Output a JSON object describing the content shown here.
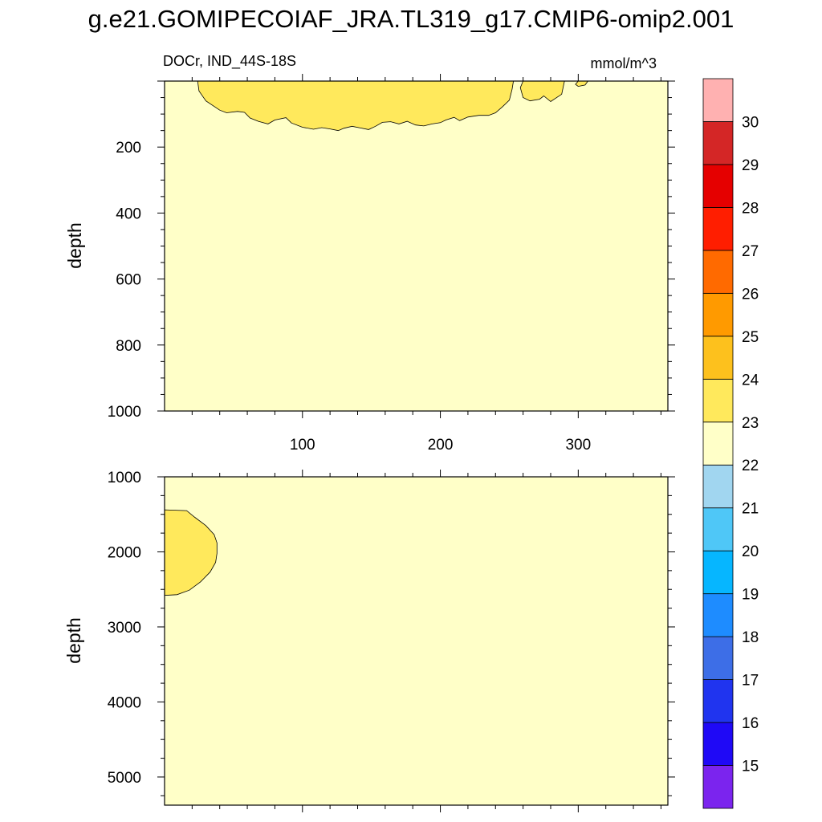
{
  "title": "g.e21.GOMIPECOIAF_JRA.TL319_g17.CMIP6-omip2.001",
  "subtitle_left": "DOCr, IND_44S-18S",
  "subtitle_right": "mmol/m^3",
  "colors": {
    "background_fill": "#ffffc8",
    "contour_23_24": "#ffe95c",
    "outline": "#000000"
  },
  "chart_data": [
    {
      "type": "heatmap",
      "panel": "upper",
      "xlabel": "",
      "ylabel": "depth",
      "xlim": [
        0,
        365
      ],
      "ylim": [
        1000,
        0
      ],
      "x_ticks": [
        100,
        200,
        300
      ],
      "x_tick_labels": [
        "100",
        "200",
        "300"
      ],
      "y_ticks": [
        200,
        400,
        600,
        800,
        1000
      ],
      "y_tick_labels": [
        "200",
        "400",
        "600",
        "800",
        "1000"
      ],
      "background_range": "22-23",
      "regions": [
        {
          "range": "23-24",
          "outline": [
            [
              24,
              0
            ],
            [
              25,
              30
            ],
            [
              30,
              60
            ],
            [
              40,
              88
            ],
            [
              45,
              96
            ],
            [
              53,
              92
            ],
            [
              58,
              95
            ],
            [
              62,
              112
            ],
            [
              68,
              122
            ],
            [
              75,
              130
            ],
            [
              80,
              118
            ],
            [
              88,
              111
            ],
            [
              92,
              127
            ],
            [
              100,
              140
            ],
            [
              108,
              146
            ],
            [
              114,
              141
            ],
            [
              120,
              145
            ],
            [
              126,
              150
            ],
            [
              130,
              143
            ],
            [
              136,
              137
            ],
            [
              142,
              142
            ],
            [
              148,
              147
            ],
            [
              153,
              137
            ],
            [
              158,
              125
            ],
            [
              164,
              123
            ],
            [
              170,
              130
            ],
            [
              176,
              122
            ],
            [
              182,
              133
            ],
            [
              188,
              136
            ],
            [
              194,
              130
            ],
            [
              200,
              126
            ],
            [
              204,
              118
            ],
            [
              210,
              110
            ],
            [
              214,
              120
            ],
            [
              220,
              109
            ],
            [
              228,
              104
            ],
            [
              235,
              104
            ],
            [
              240,
              96
            ],
            [
              245,
              78
            ],
            [
              250,
              58
            ],
            [
              252,
              25
            ],
            [
              253,
              0
            ]
          ]
        },
        {
          "range": "23-24",
          "outline": [
            [
              260,
              0
            ],
            [
              258,
              20
            ],
            [
              260,
              50
            ],
            [
              265,
              60
            ],
            [
              272,
              55
            ],
            [
              275,
              45
            ],
            [
              280,
              62
            ],
            [
              288,
              40
            ],
            [
              290,
              0
            ]
          ]
        },
        {
          "range": "23-24",
          "outline": [
            [
              300,
              0
            ],
            [
              298,
              10
            ],
            [
              300,
              16
            ],
            [
              305,
              12
            ],
            [
              307,
              0
            ]
          ]
        }
      ]
    },
    {
      "type": "heatmap",
      "panel": "lower",
      "xlabel": "",
      "ylabel": "depth",
      "xlim": [
        0,
        365
      ],
      "ylim": [
        5375,
        1000
      ],
      "x_ticks": [
        100,
        200,
        300
      ],
      "y_ticks": [
        1000,
        2000,
        3000,
        4000,
        5000
      ],
      "y_tick_labels": [
        "1000",
        "2000",
        "3000",
        "4000",
        "5000"
      ],
      "background_range": "22-23",
      "regions": [
        {
          "range": "23-24",
          "outline": [
            [
              0,
              1440
            ],
            [
              16,
              1450
            ],
            [
              22,
              1540
            ],
            [
              30,
              1650
            ],
            [
              36,
              1770
            ],
            [
              38,
              1880
            ],
            [
              38,
              2020
            ],
            [
              37,
              2140
            ],
            [
              33,
              2270
            ],
            [
              26,
              2400
            ],
            [
              18,
              2510
            ],
            [
              9,
              2570
            ],
            [
              0,
              2580
            ]
          ]
        }
      ]
    }
  ],
  "colorbar": {
    "labels": [
      "15",
      "16",
      "17",
      "18",
      "19",
      "20",
      "21",
      "22",
      "23",
      "24",
      "25",
      "26",
      "27",
      "28",
      "29",
      "30"
    ],
    "colors": [
      "#7b24ee",
      "#1f09f6",
      "#2034ef",
      "#3d6ee7",
      "#1e8cff",
      "#06b6ff",
      "#4fc7f7",
      "#a1d6f0",
      "#ffffc8",
      "#ffe95c",
      "#fdc11d",
      "#ff9a00",
      "#ff6a00",
      "#ff1e00",
      "#e50000",
      "#d42626",
      "#ffb1b1"
    ]
  }
}
